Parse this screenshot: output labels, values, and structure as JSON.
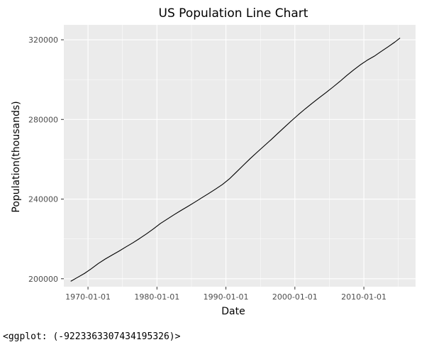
{
  "chart_data": {
    "type": "line",
    "title": "US Population Line Chart",
    "xlabel": "Date",
    "ylabel": "Population(thousands)",
    "x_ticks": [
      "1970-01-01",
      "1980-01-01",
      "1990-01-01",
      "2000-01-01",
      "2010-01-01"
    ],
    "y_ticks": [
      "200000",
      "240000",
      "280000",
      "320000"
    ],
    "xlim": [
      "1966-07-01",
      "2017-07-01"
    ],
    "ylim": [
      196000,
      327500
    ],
    "grid": true,
    "series": [
      {
        "color": "#000000",
        "x": [
          "1967-07-01",
          "1968-07-01",
          "1969-07-01",
          "1970-07-01",
          "1971-07-01",
          "1972-07-01",
          "1973-07-01",
          "1974-07-01",
          "1975-07-01",
          "1976-07-01",
          "1977-07-01",
          "1978-07-01",
          "1979-07-01",
          "1980-07-01",
          "1981-07-01",
          "1982-07-01",
          "1983-07-01",
          "1984-07-01",
          "1985-07-01",
          "1986-07-01",
          "1987-07-01",
          "1988-07-01",
          "1989-07-01",
          "1990-07-01",
          "1991-07-01",
          "1992-07-01",
          "1993-07-01",
          "1994-07-01",
          "1995-07-01",
          "1996-07-01",
          "1997-07-01",
          "1998-07-01",
          "1999-07-01",
          "2000-07-01",
          "2001-07-01",
          "2002-07-01",
          "2003-07-01",
          "2004-07-01",
          "2005-07-01",
          "2006-07-01",
          "2007-07-01",
          "2008-07-01",
          "2009-07-01",
          "2010-07-01",
          "2011-07-01",
          "2012-07-01",
          "2013-07-01",
          "2014-07-01",
          "2015-04-01"
        ],
        "y": [
          198712,
          200706,
          202677,
          205052,
          207661,
          209896,
          211909,
          213854,
          215973,
          218035,
          220239,
          222585,
          225055,
          227726,
          229966,
          232188,
          234307,
          236348,
          238466,
          240651,
          242804,
          245021,
          247342,
          250132,
          253493,
          256894,
          260255,
          263436,
          266557,
          269667,
          272912,
          276115,
          279295,
          282385,
          285309,
          288105,
          290820,
          293463,
          296186,
          298996,
          302004,
          304798,
          307439,
          309762,
          311719,
          314102,
          316427,
          318857,
          320887
        ]
      }
    ]
  },
  "caption": "<ggplot: (-9223363307434195326)>"
}
